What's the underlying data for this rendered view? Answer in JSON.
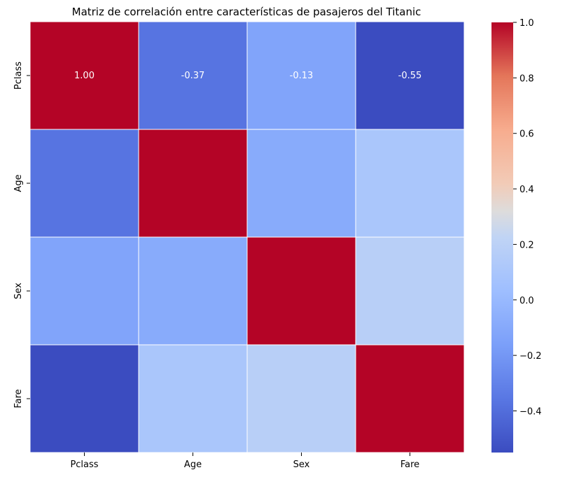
{
  "chart_data": {
    "type": "heatmap",
    "title": "Matriz de correlación entre características de pasajeros del Titanic",
    "xlabel": "",
    "ylabel": "",
    "x_categories": [
      "Pclass",
      "Age",
      "Sex",
      "Fare"
    ],
    "y_categories": [
      "Pclass",
      "Age",
      "Sex",
      "Fare"
    ],
    "values": [
      [
        1.0,
        -0.37,
        -0.13,
        -0.55
      ],
      [
        -0.37,
        1.0,
        -0.09,
        0.1
      ],
      [
        -0.13,
        -0.09,
        1.0,
        0.18
      ],
      [
        -0.55,
        0.1,
        0.18,
        1.0
      ]
    ],
    "annotations": [
      [
        "1.00",
        "-0.37",
        "-0.13",
        "-0.55"
      ],
      [
        "",
        "",
        "",
        ""
      ],
      [
        "",
        "",
        "",
        ""
      ],
      [
        "",
        "",
        "",
        ""
      ]
    ],
    "colormap": "coolwarm",
    "vmin": -0.55,
    "vmax": 1.0,
    "colorbar_ticks": [
      "1.0",
      "0.8",
      "0.6",
      "0.4",
      "0.2",
      "0.0",
      "−0.2",
      "−0.4"
    ],
    "colorbar_tick_values": [
      1.0,
      0.8,
      0.6,
      0.4,
      0.2,
      0.0,
      -0.2,
      -0.4
    ],
    "cell_line_color": "#ffffff",
    "grid": false,
    "legend": "colorbar-right"
  }
}
